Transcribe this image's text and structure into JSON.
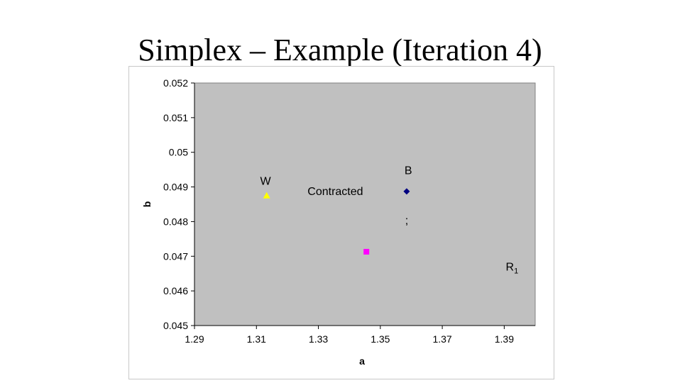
{
  "slide": {
    "title": "Simplex – Example (Iteration 4)"
  },
  "chart_data": {
    "type": "scatter",
    "xlabel": "a",
    "ylabel": "b",
    "xlim": [
      1.29,
      1.4
    ],
    "ylim": [
      0.045,
      0.052
    ],
    "x_ticks": [
      "1.29",
      "1.31",
      "1.33",
      "1.35",
      "1.37",
      "1.39"
    ],
    "y_ticks": [
      "0.052",
      "0.051",
      "0.05",
      "0.049",
      "0.048",
      "0.047",
      "0.046",
      "0.045"
    ],
    "grid": false,
    "plot_background": "#c0c0c0",
    "series": [
      {
        "marker": "diamond",
        "color": "#000080",
        "points": [
          [
            1.3585,
            0.04887
          ]
        ]
      },
      {
        "marker": "square",
        "color": "#ff00ff",
        "points": [
          [
            1.3455,
            0.04713
          ]
        ]
      },
      {
        "marker": "triangle",
        "color": "#ffff00",
        "points": [
          [
            1.3133,
            0.04875
          ]
        ]
      }
    ],
    "annotations": [
      {
        "text": "W",
        "x": 1.3112,
        "y": 0.04906
      },
      {
        "text": "Contracted",
        "x": 1.3265,
        "y": 0.04877
      },
      {
        "text": "B",
        "x": 1.3578,
        "y": 0.04937
      },
      {
        "text": ";",
        "x": 1.358,
        "y": 0.04793
      },
      {
        "text": "R",
        "subscript": "1",
        "x": 1.3905,
        "y": 0.04659
      }
    ]
  }
}
